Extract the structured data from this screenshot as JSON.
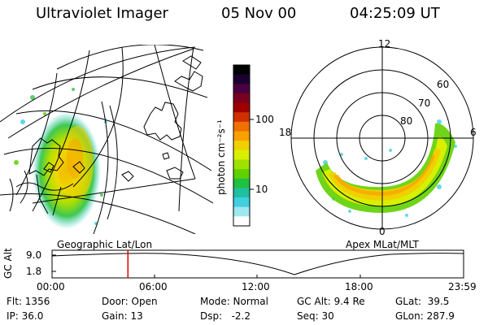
{
  "header": {
    "instrument": "Ultraviolet Imager",
    "date": "05 Nov 00",
    "time": "04:25:09 UT"
  },
  "colorbar": {
    "unit_label": "photon cm⁻²s⁻¹",
    "tick_100": "100",
    "tick_10": "10",
    "colors": [
      "#000000",
      "#1a0030",
      "#4a0040",
      "#7a0020",
      "#a00000",
      "#d03000",
      "#f07000",
      "#f8a000",
      "#f0d000",
      "#d8f000",
      "#a0e000",
      "#60d000",
      "#20c040",
      "#20c0a0",
      "#40d0e0",
      "#a0e8f0",
      "#ffffff"
    ]
  },
  "left_map": {
    "caption": "Geographic Lat/Lon"
  },
  "right_map": {
    "caption": "Apex MLat/MLT",
    "mlt_labels": {
      "top": "12",
      "left": "18",
      "right": "6",
      "bottom": "0"
    },
    "lat_labels": [
      "60",
      "70",
      "80"
    ]
  },
  "timeline": {
    "axis_label": "GC Alt",
    "y_ticks": [
      "9.0",
      "1.8"
    ],
    "x_ticks": [
      "00:00",
      "06:00",
      "12:00",
      "18:00",
      "23:59"
    ],
    "current_time_hours": 4.42,
    "marker_color": "#e00000"
  },
  "info": {
    "flt": "Flt: 1356",
    "ip": "IP: 36.0",
    "door": "Door: Open",
    "gain": "Gain: 13",
    "mode": "Mode: Normal",
    "dsp": "Dsp:   -2.2",
    "gcalt": "GC Alt: 9.4 Re",
    "seq": "Seq: 30",
    "glat": "GLat:  39.5",
    "glon": "GLon: 287.9"
  }
}
